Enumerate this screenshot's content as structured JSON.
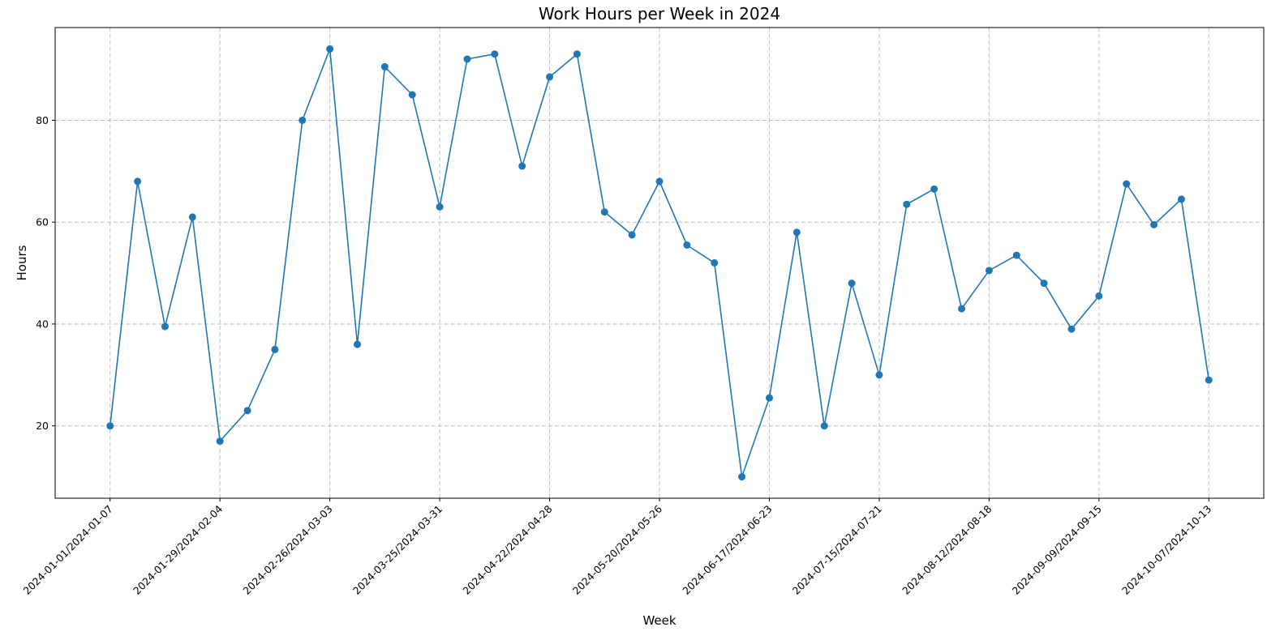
{
  "chart_data": {
    "type": "line",
    "title": "Work Hours per Week in 2024",
    "xlabel": "Week",
    "ylabel": "Hours",
    "color": "#1f77b4",
    "grid": true,
    "ylim": [
      5.8,
      98.2
    ],
    "yticks": [
      20,
      40,
      60,
      80
    ],
    "xtick_labels": [
      {
        "index": 0,
        "label": "2024-01-01/2024-01-07"
      },
      {
        "index": 4,
        "label": "2024-01-29/2024-02-04"
      },
      {
        "index": 8,
        "label": "2024-02-26/2024-03-03"
      },
      {
        "index": 12,
        "label": "2024-03-25/2024-03-31"
      },
      {
        "index": 16,
        "label": "2024-04-22/2024-04-28"
      },
      {
        "index": 20,
        "label": "2024-05-20/2024-05-26"
      },
      {
        "index": 24,
        "label": "2024-06-17/2024-06-23"
      },
      {
        "index": 28,
        "label": "2024-07-15/2024-07-21"
      },
      {
        "index": 32,
        "label": "2024-08-12/2024-08-18"
      },
      {
        "index": 36,
        "label": "2024-09-09/2024-09-15"
      },
      {
        "index": 40,
        "label": "2024-10-07/2024-10-13"
      }
    ],
    "x": [
      "2024-01-01/2024-01-07",
      "2024-01-08/2024-01-14",
      "2024-01-15/2024-01-21",
      "2024-01-22/2024-01-28",
      "2024-01-29/2024-02-04",
      "2024-02-05/2024-02-11",
      "2024-02-12/2024-02-18",
      "2024-02-19/2024-02-25",
      "2024-02-26/2024-03-03",
      "2024-03-04/2024-03-10",
      "2024-03-11/2024-03-17",
      "2024-03-18/2024-03-24",
      "2024-03-25/2024-03-31",
      "2024-04-01/2024-04-07",
      "2024-04-08/2024-04-14",
      "2024-04-15/2024-04-21",
      "2024-04-22/2024-04-28",
      "2024-04-29/2024-05-05",
      "2024-05-06/2024-05-12",
      "2024-05-13/2024-05-19",
      "2024-05-20/2024-05-26",
      "2024-05-27/2024-06-02",
      "2024-06-03/2024-06-09",
      "2024-06-10/2024-06-16",
      "2024-06-17/2024-06-23",
      "2024-06-24/2024-06-30",
      "2024-07-01/2024-07-07",
      "2024-07-08/2024-07-14",
      "2024-07-15/2024-07-21",
      "2024-07-22/2024-07-28",
      "2024-07-29/2024-08-04",
      "2024-08-05/2024-08-11",
      "2024-08-12/2024-08-18",
      "2024-08-19/2024-08-25",
      "2024-08-26/2024-09-01",
      "2024-09-02/2024-09-08",
      "2024-09-09/2024-09-15",
      "2024-09-16/2024-09-22",
      "2024-09-23/2024-09-29",
      "2024-09-30/2024-10-06",
      "2024-10-07/2024-10-13"
    ],
    "series": [
      {
        "values": [
          20,
          68,
          39.5,
          61,
          17,
          23,
          35,
          80,
          94,
          36,
          90.5,
          85,
          63,
          92,
          93,
          71,
          88.5,
          93,
          62,
          57.5,
          68,
          55.5,
          52,
          10,
          25.5,
          58,
          20,
          48,
          30,
          63.5,
          66.5,
          43,
          50.5,
          53.5,
          48,
          39,
          45.5,
          67.5,
          59.5,
          64.5,
          29
        ]
      }
    ]
  }
}
